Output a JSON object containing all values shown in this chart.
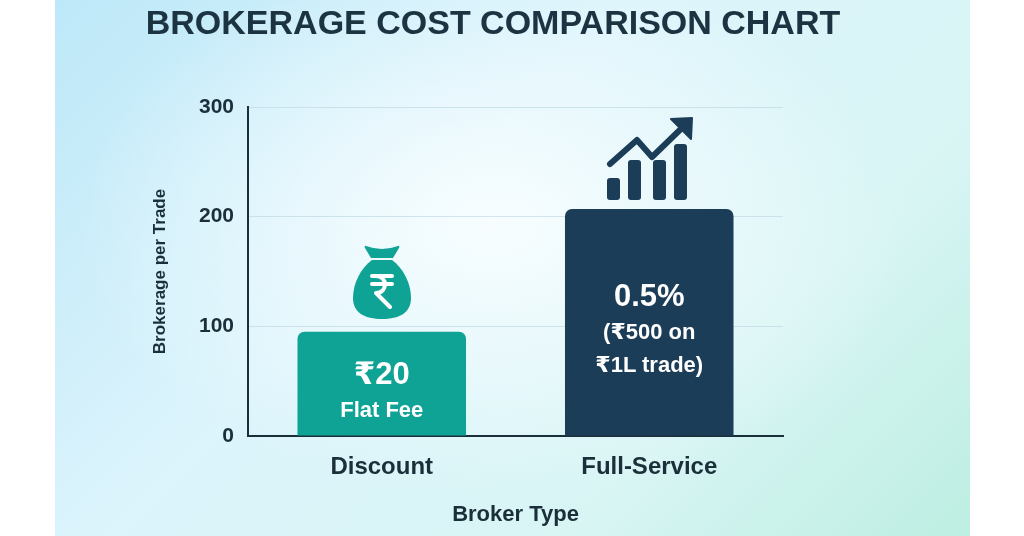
{
  "chart_data": {
    "type": "bar",
    "title": "BROKERAGE COST COMPARISON CHART",
    "xlabel": "Broker Type",
    "ylabel": "Brokerage per Trade",
    "categories": [
      "Discount",
      "Full-Service"
    ],
    "values": [
      95,
      207
    ],
    "colors": [
      "#0fa396",
      "#1c3d58"
    ],
    "annotations": [
      "₹20\nFlat Fee",
      "0.5%\n(₹500 on\n₹1L trade)"
    ],
    "ylim": [
      0,
      300
    ],
    "yticks": [
      0,
      100,
      200,
      300
    ],
    "grid": "y"
  }
}
